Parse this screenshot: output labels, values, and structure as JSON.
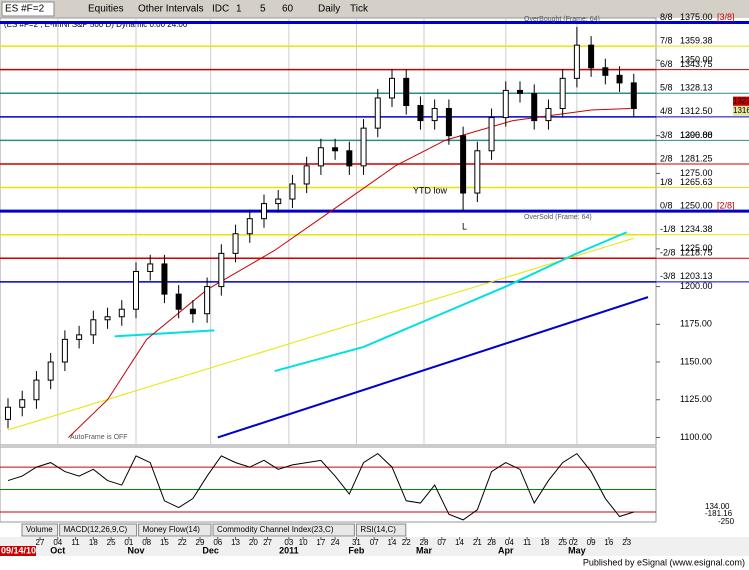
{
  "toolbar": {
    "symbol": "ES #F=2",
    "items": [
      "Equities",
      "Other Intervals",
      "IDC",
      "1",
      "5",
      "60",
      "Daily",
      "Tick"
    ]
  },
  "chart_data": {
    "type": "candlestick",
    "title": "(ES #F=2 , E-MINI S&P 500 D) Dynamic 0:00 24:00",
    "x": [
      0,
      4,
      8,
      12,
      16,
      20,
      24,
      28,
      32,
      36,
      40,
      44,
      48,
      52,
      56,
      60,
      64,
      68,
      72,
      76,
      80,
      84,
      88,
      92,
      96,
      100,
      104,
      108,
      112,
      116,
      120,
      124,
      128,
      132,
      136,
      140,
      144,
      148,
      152,
      156,
      160,
      164,
      168,
      172,
      176
    ],
    "open": [
      1112,
      1120,
      1125,
      1138,
      1150,
      1165,
      1168,
      1178,
      1180,
      1185,
      1210,
      1215,
      1195,
      1185,
      1182,
      1200,
      1222,
      1235,
      1245,
      1255,
      1258,
      1268,
      1280,
      1292,
      1290,
      1280,
      1305,
      1325,
      1338,
      1320,
      1310,
      1318,
      1300,
      1262,
      1290,
      1312,
      1330,
      1328,
      1310,
      1318,
      1338,
      1360,
      1345,
      1340,
      1335
    ],
    "high": [
      1126,
      1131,
      1144,
      1156,
      1171,
      1174,
      1184,
      1186,
      1191,
      1216,
      1221,
      1221,
      1201,
      1191,
      1206,
      1228,
      1241,
      1251,
      1261,
      1264,
      1274,
      1286,
      1298,
      1298,
      1296,
      1311,
      1331,
      1344,
      1344,
      1326,
      1324,
      1324,
      1306,
      1296,
      1318,
      1336,
      1336,
      1334,
      1324,
      1344,
      1372,
      1366,
      1351,
      1346,
      1341
    ],
    "low": [
      1106,
      1114,
      1119,
      1132,
      1144,
      1159,
      1162,
      1172,
      1174,
      1179,
      1204,
      1189,
      1179,
      1176,
      1176,
      1194,
      1216,
      1229,
      1239,
      1249,
      1252,
      1262,
      1274,
      1284,
      1274,
      1274,
      1299,
      1319,
      1314,
      1304,
      1304,
      1294,
      1250,
      1256,
      1284,
      1306,
      1322,
      1304,
      1304,
      1312,
      1332,
      1339,
      1334,
      1329,
      1312
    ],
    "close": [
      1120,
      1125,
      1138,
      1150,
      1165,
      1168,
      1178,
      1180,
      1185,
      1210,
      1215,
      1195,
      1185,
      1182,
      1200,
      1222,
      1235,
      1245,
      1255,
      1258,
      1268,
      1280,
      1292,
      1290,
      1280,
      1305,
      1325,
      1338,
      1320,
      1310,
      1318,
      1300,
      1262,
      1290,
      1312,
      1330,
      1328,
      1310,
      1318,
      1338,
      1360,
      1345,
      1340,
      1335,
      1318
    ],
    "up_color": "#ffffff",
    "down_color": "#000000",
    "xlim": [
      0,
      180
    ],
    "ylim": [
      1095,
      1378
    ],
    "yticks": [
      {
        "value": 1100,
        "label": "1100.00"
      },
      {
        "value": 1125,
        "label": "1125.00"
      },
      {
        "value": 1150,
        "label": "1150.00"
      },
      {
        "value": 1175,
        "label": "1175.00"
      },
      {
        "value": 1200,
        "label": "1200.00"
      },
      {
        "value": 1225,
        "label": "1225.00"
      },
      {
        "value": 1275,
        "label": "1275.00"
      },
      {
        "value": 1300,
        "label": "1300.00"
      },
      {
        "value": 1350,
        "label": "1350.00"
      }
    ],
    "xticks": [
      {
        "value": 9,
        "label": "27"
      },
      {
        "value": 14,
        "label": "04"
      },
      {
        "value": 19,
        "label": "11"
      },
      {
        "value": 24,
        "label": "18"
      },
      {
        "value": 29,
        "label": "25"
      },
      {
        "value": 34,
        "label": "01"
      },
      {
        "value": 39,
        "label": "08"
      },
      {
        "value": 44,
        "label": "15"
      },
      {
        "value": 49,
        "label": "22"
      },
      {
        "value": 54,
        "label": "29"
      },
      {
        "value": 59,
        "label": "06"
      },
      {
        "value": 64,
        "label": "13"
      },
      {
        "value": 69,
        "label": "20"
      },
      {
        "value": 73,
        "label": "27"
      },
      {
        "value": 79,
        "label": "03"
      },
      {
        "value": 83,
        "label": "10"
      },
      {
        "value": 88,
        "label": "17"
      },
      {
        "value": 92,
        "label": "24"
      },
      {
        "value": 98,
        "label": "31"
      },
      {
        "value": 103,
        "label": "07"
      },
      {
        "value": 108,
        "label": "14"
      },
      {
        "value": 112,
        "label": "22"
      },
      {
        "value": 117,
        "label": "28"
      },
      {
        "value": 122,
        "label": "07"
      },
      {
        "value": 127,
        "label": "14"
      },
      {
        "value": 132,
        "label": "21"
      },
      {
        "value": 136,
        "label": "28"
      },
      {
        "value": 141,
        "label": "04"
      },
      {
        "value": 146,
        "label": "11"
      },
      {
        "value": 151,
        "label": "18"
      },
      {
        "value": 156,
        "label": "25"
      },
      {
        "value": 159,
        "label": "02"
      },
      {
        "value": 164,
        "label": "09"
      },
      {
        "value": 169,
        "label": "16"
      },
      {
        "value": 174,
        "label": "23"
      }
    ],
    "xticks_major": [
      {
        "value": 0,
        "label": "09/14/10"
      },
      {
        "value": 14,
        "label": "Oct"
      },
      {
        "value": 36,
        "label": "Nov"
      },
      {
        "value": 57,
        "label": "Dec"
      },
      {
        "value": 79,
        "label": "2011"
      },
      {
        "value": 98,
        "label": "Feb"
      },
      {
        "value": 117,
        "label": "Mar"
      },
      {
        "value": 140,
        "label": "Apr"
      },
      {
        "value": 160,
        "label": "May"
      }
    ],
    "murrey": [
      {
        "label": "8/8",
        "value": 1375,
        "value_label": "1375.00",
        "color": "#0000cc",
        "thick": true
      },
      {
        "label": "7/8",
        "value": 1359.38,
        "value_label": "1359.38",
        "color": "#e6e600",
        "thick": false
      },
      {
        "label": "6/8",
        "value": 1343.75,
        "value_label": "1343.75",
        "color": "#cc0000",
        "thick": false
      },
      {
        "label": "5/8",
        "value": 1328.13,
        "value_label": "1328.13",
        "color": "#2e8b8b",
        "thick": false
      },
      {
        "label": "4/8",
        "value": 1312.5,
        "value_label": "1312.50",
        "color": "#0000cc",
        "thick": false
      },
      {
        "label": "3/8",
        "value": 1296.88,
        "value_label": "1296.88",
        "color": "#2e8b8b",
        "thick": false
      },
      {
        "label": "2/8",
        "value": 1281.25,
        "value_label": "1281.25",
        "color": "#cc0000",
        "thick": false
      },
      {
        "label": "1/8",
        "value": 1265.63,
        "value_label": "1265.63",
        "color": "#e6e600",
        "thick": false
      },
      {
        "label": "0/8",
        "value": 1250,
        "value_label": "1250.00",
        "color": "#0000cc",
        "thick": true
      },
      {
        "label": "-1/8",
        "value": 1234.38,
        "value_label": "1234.38",
        "color": "#e6e600",
        "thick": false
      },
      {
        "label": "-2/8",
        "value": 1218.75,
        "value_label": "1218.75",
        "color": "#cc0000",
        "thick": false
      },
      {
        "label": "-3/8",
        "value": 1203.13,
        "value_label": "1203.13",
        "color": "#0000cc",
        "thick": false
      }
    ],
    "frame_labels": [
      "[3/8]",
      "[2/8]"
    ],
    "overlays": [
      {
        "color": "#e6e600",
        "x": [
          0,
          176
        ],
        "values": [
          1105,
          1232
        ]
      },
      {
        "color": "#0000cc",
        "x": [
          59,
          180
        ],
        "values": [
          1100,
          1193
        ]
      },
      {
        "color": "#00e0e0",
        "x": [
          75,
          100,
          120,
          140,
          160,
          174
        ],
        "values": [
          1144,
          1160,
          1180,
          1200,
          1222,
          1236
        ]
      },
      {
        "color": "#00e0e0",
        "x": [
          30,
          58
        ],
        "values": [
          1167,
          1171
        ]
      },
      {
        "color": "#cc0000",
        "x": [
          17,
          28,
          39,
          56,
          75,
          89,
          109,
          123,
          142,
          164,
          175
        ],
        "values": [
          1100,
          1125,
          1165,
          1198,
          1224,
          1247,
          1280,
          1297,
          1310,
          1317,
          1318
        ]
      }
    ],
    "price_tags": [
      {
        "value": 1322.59,
        "label": "1322.59",
        "color": "#cc0000"
      },
      {
        "value": 1316.5,
        "label": "1316.50",
        "color": "#e6e6a0"
      }
    ],
    "annotations": [
      "OverBought (Frame: 64)",
      "OverSold (Frame: 64)",
      "YTD low",
      "L",
      "AutoFrame is OFF"
    ],
    "cci": {
      "values": [
        40,
        60,
        100,
        120,
        80,
        60,
        90,
        40,
        20,
        150,
        120,
        -50,
        -80,
        -40,
        60,
        150,
        120,
        100,
        130,
        90,
        110,
        120,
        130,
        60,
        -20,
        120,
        160,
        100,
        -50,
        -60,
        20,
        -110,
        -135,
        -90,
        80,
        120,
        90,
        -60,
        40,
        120,
        160,
        80,
        -40,
        -120,
        -100
      ],
      "ylim": [
        -140,
        185
      ],
      "levels": [
        {
          "value": 100,
          "color": "#cc0000"
        },
        {
          "value": 0,
          "color": "#008800"
        },
        {
          "value": -100,
          "color": "#cc0000"
        }
      ],
      "tag_labels": [
        "134.00",
        "-181.16",
        "-250"
      ]
    }
  },
  "tabs": [
    "Volume",
    "MACD(12,26,9,C)",
    "Money Flow(14)",
    "Commodity Channel Index(23,C)",
    "RSI(14,C)"
  ],
  "footer": "Published by eSignal (www.esignal.com)"
}
